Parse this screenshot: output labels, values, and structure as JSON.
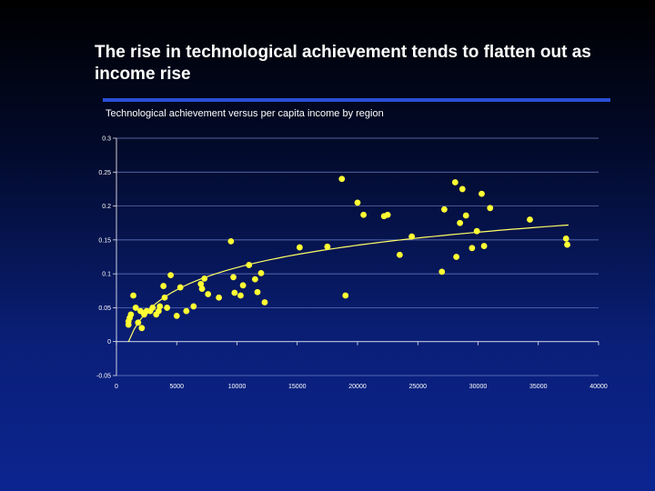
{
  "slide": {
    "title_line1": "The rise in technological achievement tends to flatten out as",
    "title_line2": "income rise",
    "accent_color": "#2b4fd8"
  },
  "chart_data": {
    "type": "scatter",
    "title": "Technological achievement versus per capita income by region",
    "xlabel": "",
    "ylabel": "",
    "xlim": [
      0,
      40000
    ],
    "ylim": [
      -0.05,
      0.3
    ],
    "xticks": [
      "0",
      "5000",
      "10000",
      "15000",
      "20000",
      "25000",
      "30000",
      "35000",
      "40000"
    ],
    "yticks": [
      "0.3",
      "0.25",
      "0.2",
      "0.15",
      "0.1",
      "0.05",
      "0",
      "-0.05"
    ],
    "grid": "horizontal",
    "point_color": "#ffff33",
    "trendline_color": "#ffff66",
    "series": [
      {
        "points": [
          [
            1000,
            0.025
          ],
          [
            1000,
            0.03
          ],
          [
            1100,
            0.035
          ],
          [
            1200,
            0.04
          ],
          [
            1400,
            0.068
          ],
          [
            1600,
            0.05
          ],
          [
            1800,
            0.028
          ],
          [
            2000,
            0.045
          ],
          [
            2100,
            0.02
          ],
          [
            2300,
            0.04
          ],
          [
            2500,
            0.045
          ],
          [
            2800,
            0.045
          ],
          [
            3000,
            0.05
          ],
          [
            3300,
            0.04
          ],
          [
            3500,
            0.045
          ],
          [
            3600,
            0.052
          ],
          [
            3900,
            0.082
          ],
          [
            4000,
            0.065
          ],
          [
            4200,
            0.05
          ],
          [
            4500,
            0.098
          ],
          [
            5000,
            0.038
          ],
          [
            5300,
            0.08
          ],
          [
            5800,
            0.045
          ],
          [
            6400,
            0.052
          ],
          [
            7000,
            0.085
          ],
          [
            7100,
            0.078
          ],
          [
            7300,
            0.093
          ],
          [
            7600,
            0.07
          ],
          [
            8500,
            0.065
          ],
          [
            9500,
            0.148
          ],
          [
            9700,
            0.095
          ],
          [
            9800,
            0.072
          ],
          [
            10300,
            0.068
          ],
          [
            10500,
            0.083
          ],
          [
            11000,
            0.113
          ],
          [
            11500,
            0.092
          ],
          [
            11700,
            0.073
          ],
          [
            12000,
            0.101
          ],
          [
            12300,
            0.058
          ],
          [
            15200,
            0.139
          ],
          [
            17500,
            0.14
          ],
          [
            18700,
            0.24
          ],
          [
            19000,
            0.068
          ],
          [
            20000,
            0.205
          ],
          [
            20500,
            0.187
          ],
          [
            22200,
            0.185
          ],
          [
            22500,
            0.187
          ],
          [
            23500,
            0.128
          ],
          [
            24500,
            0.155
          ],
          [
            27000,
            0.103
          ],
          [
            27200,
            0.195
          ],
          [
            28100,
            0.235
          ],
          [
            28200,
            0.125
          ],
          [
            28500,
            0.175
          ],
          [
            28700,
            0.225
          ],
          [
            29000,
            0.186
          ],
          [
            29500,
            0.138
          ],
          [
            29900,
            0.163
          ],
          [
            30300,
            0.218
          ],
          [
            30500,
            0.141
          ],
          [
            31000,
            0.197
          ],
          [
            34300,
            0.18
          ],
          [
            37300,
            0.152
          ],
          [
            37400,
            0.143
          ]
        ]
      }
    ],
    "trendline": {
      "type": "logarithmic",
      "x_range": [
        1000,
        37500
      ],
      "y_start": 0.0,
      "y_end": 0.172
    }
  }
}
